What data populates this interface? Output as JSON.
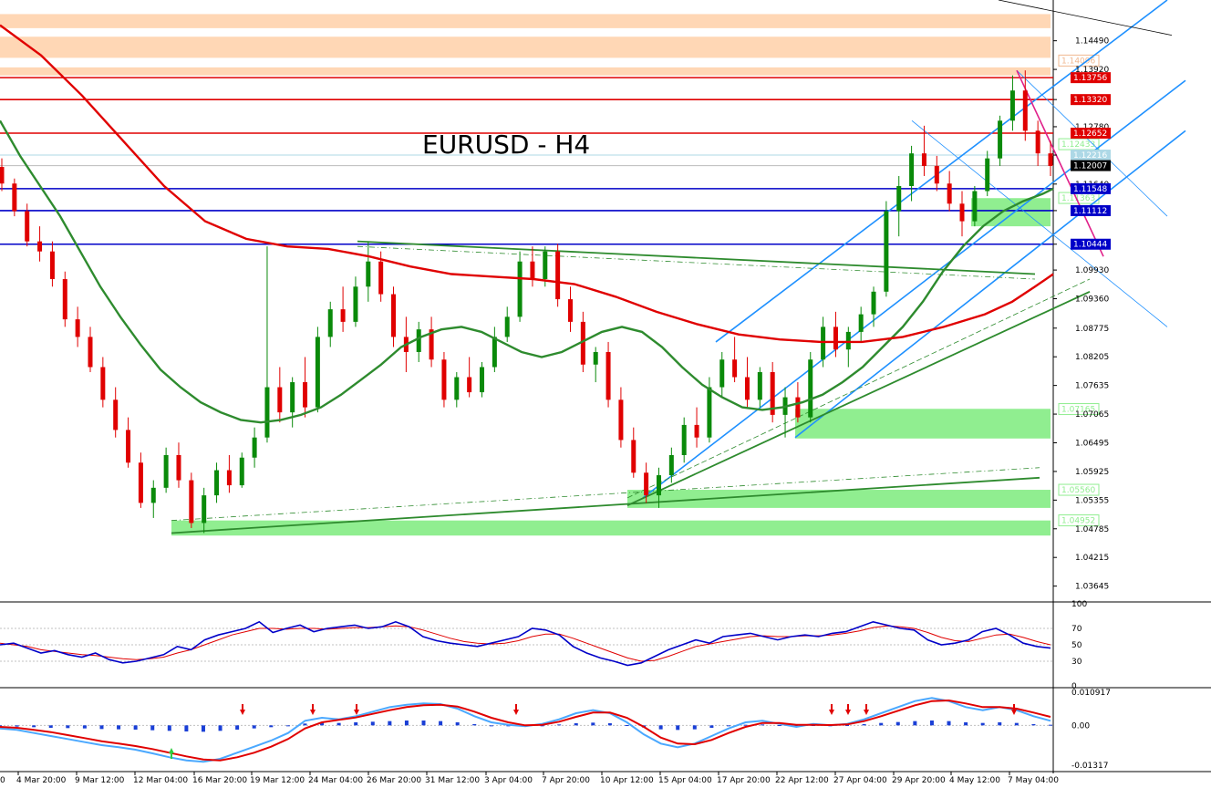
{
  "chart_data": {
    "type": "candlestick",
    "title": "EURUSD - H4",
    "colors": {
      "bull": "#0a8a0a",
      "bear": "#e00000",
      "ma_fast": "#2e8b2e",
      "ma_slow": "#e00000",
      "resistance": "#e00000",
      "support": "#0000c8",
      "channel": "#1e90ff",
      "trend": "#2e8b2e",
      "demand_zone": "#90ee90",
      "supply_zone": "#ffd7b5",
      "macd_hist": "#1a3fd6",
      "stoch_main": "#0000c8",
      "stoch_signal": "#e00000",
      "arrow": "#e00000",
      "arrow_up": "#2ecc40",
      "last_price_bg": "#000000",
      "pink": "#e0208a"
    },
    "y_axis_ticks": [
      "1.14490",
      "1.13920",
      "1.13320",
      "1.12780",
      "1.12216",
      "1.11640",
      "1.11112",
      "1.10444",
      "1.09930",
      "1.09360",
      "1.08775",
      "1.08205",
      "1.07635",
      "1.07065",
      "1.06495",
      "1.05925",
      "1.05355",
      "1.04785",
      "1.04215",
      "1.03645"
    ],
    "y_range": [
      1.0333,
      1.153
    ],
    "x_labels": [
      "4 Mar 20:00",
      "9 Mar 12:00",
      "12 Mar 04:00",
      "16 Mar 20:00",
      "19 Mar 12:00",
      "24 Mar 04:00",
      "26 Mar 20:00",
      "31 Mar 12:00",
      "3 Apr 04:00",
      "7 Apr 20:00",
      "10 Apr 12:00",
      "15 Apr 04:00",
      "17 Apr 20:00",
      "22 Apr 12:00",
      "27 Apr 04:00",
      "29 Apr 20:00",
      "4 May 12:00",
      "7 May 04:00"
    ],
    "x_first_fragment": "0",
    "candles": [
      [
        1.1198,
        1.1215,
        1.115,
        1.1165
      ],
      [
        1.1165,
        1.1175,
        1.11,
        1.111
      ],
      [
        1.111,
        1.1125,
        1.104,
        1.105
      ],
      [
        1.105,
        1.108,
        1.101,
        1.103
      ],
      [
        1.103,
        1.105,
        1.096,
        1.0975
      ],
      [
        1.0975,
        1.099,
        1.088,
        1.0895
      ],
      [
        1.0895,
        1.092,
        1.084,
        1.086
      ],
      [
        1.086,
        1.088,
        1.079,
        1.08
      ],
      [
        1.08,
        1.082,
        1.072,
        1.0735
      ],
      [
        1.0735,
        1.076,
        1.066,
        1.0675
      ],
      [
        1.0675,
        1.07,
        1.06,
        1.061
      ],
      [
        1.061,
        1.063,
        1.052,
        1.053
      ],
      [
        1.053,
        1.0575,
        1.05,
        1.056
      ],
      [
        1.056,
        1.064,
        1.055,
        1.0625
      ],
      [
        1.0625,
        1.065,
        1.056,
        1.0575
      ],
      [
        1.0575,
        1.059,
        1.048,
        1.049
      ],
      [
        1.049,
        1.056,
        1.047,
        1.0545
      ],
      [
        1.0545,
        1.061,
        1.053,
        1.0595
      ],
      [
        1.0595,
        1.0625,
        1.055,
        1.0565
      ],
      [
        1.0565,
        1.063,
        1.056,
        1.062
      ],
      [
        1.062,
        1.068,
        1.06,
        1.066
      ],
      [
        1.066,
        1.104,
        1.065,
        1.076
      ],
      [
        1.076,
        1.08,
        1.069,
        1.071
      ],
      [
        1.071,
        1.078,
        1.068,
        1.077
      ],
      [
        1.077,
        1.082,
        1.07,
        1.072
      ],
      [
        1.072,
        1.088,
        1.071,
        1.086
      ],
      [
        1.086,
        1.093,
        1.084,
        1.0915
      ],
      [
        1.0915,
        1.096,
        1.087,
        1.089
      ],
      [
        1.089,
        1.098,
        1.088,
        1.096
      ],
      [
        1.096,
        1.105,
        1.093,
        1.101
      ],
      [
        1.101,
        1.103,
        1.093,
        1.0945
      ],
      [
        1.0945,
        1.096,
        1.084,
        1.086
      ],
      [
        1.086,
        1.09,
        1.079,
        1.083
      ],
      [
        1.083,
        1.089,
        1.081,
        1.0875
      ],
      [
        1.0875,
        1.09,
        1.08,
        1.0815
      ],
      [
        1.0815,
        1.083,
        1.072,
        1.0735
      ],
      [
        1.0735,
        1.079,
        1.072,
        1.078
      ],
      [
        1.078,
        1.082,
        1.074,
        1.075
      ],
      [
        1.075,
        1.081,
        1.074,
        1.08
      ],
      [
        1.08,
        1.088,
        1.079,
        1.086
      ],
      [
        1.086,
        1.092,
        1.085,
        1.09
      ],
      [
        1.09,
        1.103,
        1.089,
        1.101
      ],
      [
        1.101,
        1.104,
        1.096,
        1.0975
      ],
      [
        1.0975,
        1.104,
        1.096,
        1.103
      ],
      [
        1.103,
        1.1045,
        1.092,
        1.0935
      ],
      [
        1.0935,
        1.096,
        1.087,
        1.089
      ],
      [
        1.089,
        1.091,
        1.079,
        1.0805
      ],
      [
        1.0805,
        1.084,
        1.077,
        1.083
      ],
      [
        1.083,
        1.085,
        1.072,
        1.0735
      ],
      [
        1.0735,
        1.076,
        1.064,
        1.0655
      ],
      [
        1.0655,
        1.068,
        1.058,
        1.059
      ],
      [
        1.059,
        1.061,
        1.053,
        1.0545
      ],
      [
        1.0545,
        1.06,
        1.052,
        1.0585
      ],
      [
        1.0585,
        1.064,
        1.057,
        1.0625
      ],
      [
        1.0625,
        1.07,
        1.061,
        1.0685
      ],
      [
        1.0685,
        1.072,
        1.064,
        1.066
      ],
      [
        1.066,
        1.078,
        1.065,
        1.076
      ],
      [
        1.076,
        1.083,
        1.074,
        1.0815
      ],
      [
        1.0815,
        1.086,
        1.077,
        1.078
      ],
      [
        1.078,
        1.082,
        1.072,
        1.0735
      ],
      [
        1.0735,
        1.08,
        1.072,
        1.079
      ],
      [
        1.079,
        1.081,
        1.069,
        1.0705
      ],
      [
        1.0705,
        1.076,
        1.066,
        1.074
      ],
      [
        1.074,
        1.077,
        1.069,
        1.07
      ],
      [
        1.07,
        1.083,
        1.069,
        1.0815
      ],
      [
        1.0815,
        1.09,
        1.08,
        1.088
      ],
      [
        1.088,
        1.091,
        1.082,
        1.0835
      ],
      [
        1.0835,
        1.088,
        1.08,
        1.087
      ],
      [
        1.087,
        1.092,
        1.085,
        1.0905
      ],
      [
        1.0905,
        1.096,
        1.088,
        1.095
      ],
      [
        1.095,
        1.113,
        1.094,
        1.111
      ],
      [
        1.111,
        1.118,
        1.106,
        1.116
      ],
      [
        1.116,
        1.124,
        1.113,
        1.1225
      ],
      [
        1.1225,
        1.128,
        1.118,
        1.12
      ],
      [
        1.12,
        1.122,
        1.115,
        1.1165
      ],
      [
        1.1165,
        1.119,
        1.111,
        1.1125
      ],
      [
        1.1125,
        1.115,
        1.106,
        1.109
      ],
      [
        1.109,
        1.116,
        1.108,
        1.115
      ],
      [
        1.115,
        1.123,
        1.114,
        1.1215
      ],
      [
        1.1215,
        1.13,
        1.12,
        1.129
      ],
      [
        1.129,
        1.138,
        1.127,
        1.135
      ],
      [
        1.135,
        1.139,
        1.125,
        1.127
      ],
      [
        1.127,
        1.129,
        1.12,
        1.1225
      ],
      [
        1.1225,
        1.125,
        1.118,
        1.12
      ]
    ],
    "ma_fast": [
      1.129,
      1.122,
      1.116,
      1.11,
      1.103,
      1.096,
      1.09,
      1.0845,
      1.0795,
      1.076,
      1.073,
      1.071,
      1.0695,
      1.069,
      1.0695,
      1.0705,
      1.072,
      1.0745,
      1.0775,
      1.0805,
      1.084,
      1.086,
      1.0875,
      1.088,
      1.087,
      1.085,
      1.083,
      1.082,
      1.083,
      1.085,
      1.087,
      1.088,
      1.087,
      1.084,
      1.08,
      1.0765,
      1.074,
      1.072,
      1.0715,
      1.072,
      1.073,
      1.0745,
      1.077,
      1.08,
      1.084,
      1.088,
      1.093,
      1.099,
      1.104,
      1.108,
      1.111,
      1.113,
      1.1145,
      1.1155
    ],
    "ma_fast_x": [
      0,
      22,
      44,
      66,
      88,
      110,
      132,
      154,
      176,
      198,
      220,
      242,
      264,
      286,
      308,
      330,
      352,
      374,
      396,
      418,
      440,
      462,
      484,
      506,
      528,
      550,
      572,
      594,
      616,
      638,
      660,
      682,
      704,
      726,
      748,
      770,
      792,
      814,
      836,
      858,
      880,
      902,
      924,
      946,
      968,
      990,
      1012,
      1034,
      1056,
      1078,
      1100,
      1122,
      1144,
      1155
    ],
    "ma_slow": [
      1.148,
      1.142,
      1.134,
      1.125,
      1.116,
      1.109,
      1.1055,
      1.104,
      1.1035,
      1.102,
      1.1,
      1.0985,
      1.098,
      1.0975,
      1.0965,
      1.094,
      1.091,
      1.0885,
      1.0865,
      1.0855,
      1.085,
      1.085,
      1.086,
      1.088,
      1.0905,
      1.093,
      1.096,
      1.0985
    ],
    "ma_slow_x": [
      0,
      45,
      90,
      135,
      180,
      225,
      270,
      315,
      360,
      405,
      450,
      495,
      540,
      585,
      630,
      675,
      720,
      765,
      810,
      855,
      900,
      945,
      990,
      1035,
      1080,
      1110,
      1135,
      1155
    ],
    "resistance_levels": [
      1.13756,
      1.1332,
      1.12652
    ],
    "support_levels": [
      1.11548,
      1.11112,
      1.10444
    ],
    "extra_tags": [
      {
        "value": 1.12216,
        "label": "1.12216",
        "color": "#add8e6"
      },
      {
        "value": 1.12007,
        "label": "1.12007",
        "color": "#000000"
      }
    ],
    "tags": [
      "1.13756",
      "1.13320",
      "1.12652",
      "1.11548",
      "1.11112",
      "1.10444"
    ],
    "supply_zones": [
      {
        "from": 1.1502,
        "to": 1.1474
      },
      {
        "from": 1.1457,
        "to": 1.1415
      },
      {
        "from": 1.1396,
        "to": 1.138
      }
    ],
    "zone_labels": [
      {
        "value": 1.14096,
        "label": "1.14096",
        "color": "#f0b890"
      },
      {
        "value": 1.12433,
        "label": "1.12433",
        "color": "#90ee90"
      },
      {
        "value": 1.11363,
        "label": "1.11363",
        "color": "#90ee90"
      },
      {
        "value": 1.07165,
        "label": "1.07165",
        "color": "#90ee90"
      },
      {
        "value": 1.0556,
        "label": "1.05560",
        "color": "#90ee90"
      },
      {
        "value": 1.04952,
        "label": "1.04952",
        "color": "#90ee90"
      }
    ],
    "demand_zones": [
      {
        "x0": 1065,
        "x1": 1152,
        "from": 1.1136,
        "to": 1.108
      },
      {
        "x0": 872,
        "x1": 1152,
        "from": 1.0717,
        "to": 1.0658
      },
      {
        "x0": 688,
        "x1": 1152,
        "from": 1.0556,
        "to": 1.052
      },
      {
        "x0": 188,
        "x1": 1152,
        "from": 1.0495,
        "to": 1.0465
      }
    ],
    "stoch_ticks": [
      "100",
      "70",
      "50",
      "30",
      "0"
    ],
    "stoch_main": [
      50,
      52,
      46,
      40,
      43,
      38,
      35,
      40,
      32,
      28,
      30,
      34,
      38,
      48,
      44,
      56,
      62,
      66,
      70,
      78,
      65,
      70,
      74,
      66,
      70,
      72,
      74,
      70,
      72,
      78,
      72,
      60,
      55,
      52,
      50,
      48,
      52,
      56,
      60,
      70,
      68,
      62,
      48,
      40,
      34,
      30,
      25,
      28,
      36,
      44,
      50,
      56,
      52,
      60,
      62,
      64,
      60,
      56,
      60,
      62,
      60,
      64,
      66,
      72,
      78,
      74,
      70,
      68,
      56,
      50,
      52,
      56,
      66,
      70,
      62,
      52,
      48,
      46
    ],
    "stoch_signal": [
      52,
      50,
      48,
      44,
      42,
      40,
      38,
      37,
      35,
      33,
      32,
      33,
      35,
      40,
      44,
      50,
      56,
      62,
      66,
      70,
      70,
      69,
      70,
      70,
      69,
      70,
      71,
      71,
      72,
      73,
      72,
      68,
      63,
      58,
      54,
      52,
      51,
      52,
      55,
      60,
      63,
      63,
      58,
      52,
      46,
      40,
      34,
      30,
      31,
      36,
      42,
      48,
      51,
      54,
      57,
      60,
      61,
      60,
      60,
      61,
      61,
      62,
      64,
      67,
      71,
      73,
      72,
      70,
      65,
      59,
      55,
      54,
      58,
      62,
      63,
      59,
      54,
      50
    ],
    "macd_ticks": [
      "0.010917",
      "0.00",
      "-0.01317"
    ],
    "macd_range": [
      -0.014,
      0.0118
    ],
    "macd_line": [
      -0.001,
      -0.0015,
      -0.0025,
      -0.0035,
      -0.0045,
      -0.0055,
      -0.0065,
      -0.0072,
      -0.008,
      -0.0092,
      -0.0105,
      -0.0115,
      -0.012,
      -0.011,
      -0.009,
      -0.007,
      -0.005,
      -0.0025,
      0.0015,
      0.0025,
      0.002,
      0.003,
      0.0045,
      0.006,
      0.0068,
      0.0072,
      0.007,
      0.0055,
      0.003,
      0.001,
      0.0002,
      -0.0003,
      0.0005,
      0.002,
      0.004,
      0.005,
      0.004,
      0.001,
      -0.003,
      -0.006,
      -0.0072,
      -0.006,
      -0.0035,
      -0.001,
      0.001,
      0.0015,
      0.0005,
      -0.0005,
      0.0005,
      0.0,
      0.0005,
      0.002,
      0.004,
      0.006,
      0.008,
      0.009,
      0.008,
      0.006,
      0.005,
      0.006,
      0.005,
      0.003,
      0.0015
    ],
    "macd_signal": [
      -0.0005,
      -0.0008,
      -0.0015,
      -0.0022,
      -0.0032,
      -0.0042,
      -0.0052,
      -0.006,
      -0.0068,
      -0.0078,
      -0.009,
      -0.0102,
      -0.0112,
      -0.0115,
      -0.0105,
      -0.009,
      -0.007,
      -0.0045,
      -0.001,
      0.001,
      0.0018,
      0.0026,
      0.0038,
      0.005,
      0.006,
      0.0066,
      0.0068,
      0.0062,
      0.0045,
      0.0025,
      0.001,
      0.0,
      0.0002,
      0.0012,
      0.0028,
      0.0042,
      0.0042,
      0.0025,
      -0.0005,
      -0.004,
      -0.006,
      -0.0062,
      -0.0048,
      -0.0025,
      -0.0005,
      0.0008,
      0.0008,
      0.0002,
      0.0002,
      0.0001,
      0.0003,
      0.0014,
      0.003,
      0.0048,
      0.0066,
      0.008,
      0.0082,
      0.0072,
      0.006,
      0.006,
      0.0055,
      0.0042,
      0.0028
    ],
    "macd_hist": [
      -0.0003,
      -0.0004,
      -0.0006,
      -0.0008,
      -0.0009,
      -0.001,
      -0.0012,
      -0.0013,
      -0.0014,
      -0.0016,
      -0.0018,
      -0.002,
      -0.0021,
      -0.0018,
      -0.0014,
      -0.001,
      -0.0006,
      -0.0002,
      0.0006,
      0.0009,
      0.0008,
      0.001,
      0.0012,
      0.0014,
      0.0016,
      0.0016,
      0.0014,
      0.001,
      0.0004,
      0.0,
      -0.0002,
      -0.0003,
      -0.0001,
      0.0003,
      0.0007,
      0.0009,
      0.0007,
      0.0001,
      -0.0007,
      -0.0013,
      -0.0015,
      -0.0013,
      -0.0008,
      -0.0003,
      0.0002,
      0.0003,
      0.0001,
      -0.0001,
      0.0001,
      0.0,
      0.0001,
      0.0004,
      0.0008,
      0.0011,
      0.0014,
      0.0016,
      0.0014,
      0.001,
      0.0008,
      0.001,
      0.0008,
      0.0004,
      0.0002
    ],
    "macd_arrows_down": [
      266,
      343,
      391,
      566,
      912,
      930,
      950,
      1112
    ],
    "macd_arrows_up": [
      188
    ]
  }
}
